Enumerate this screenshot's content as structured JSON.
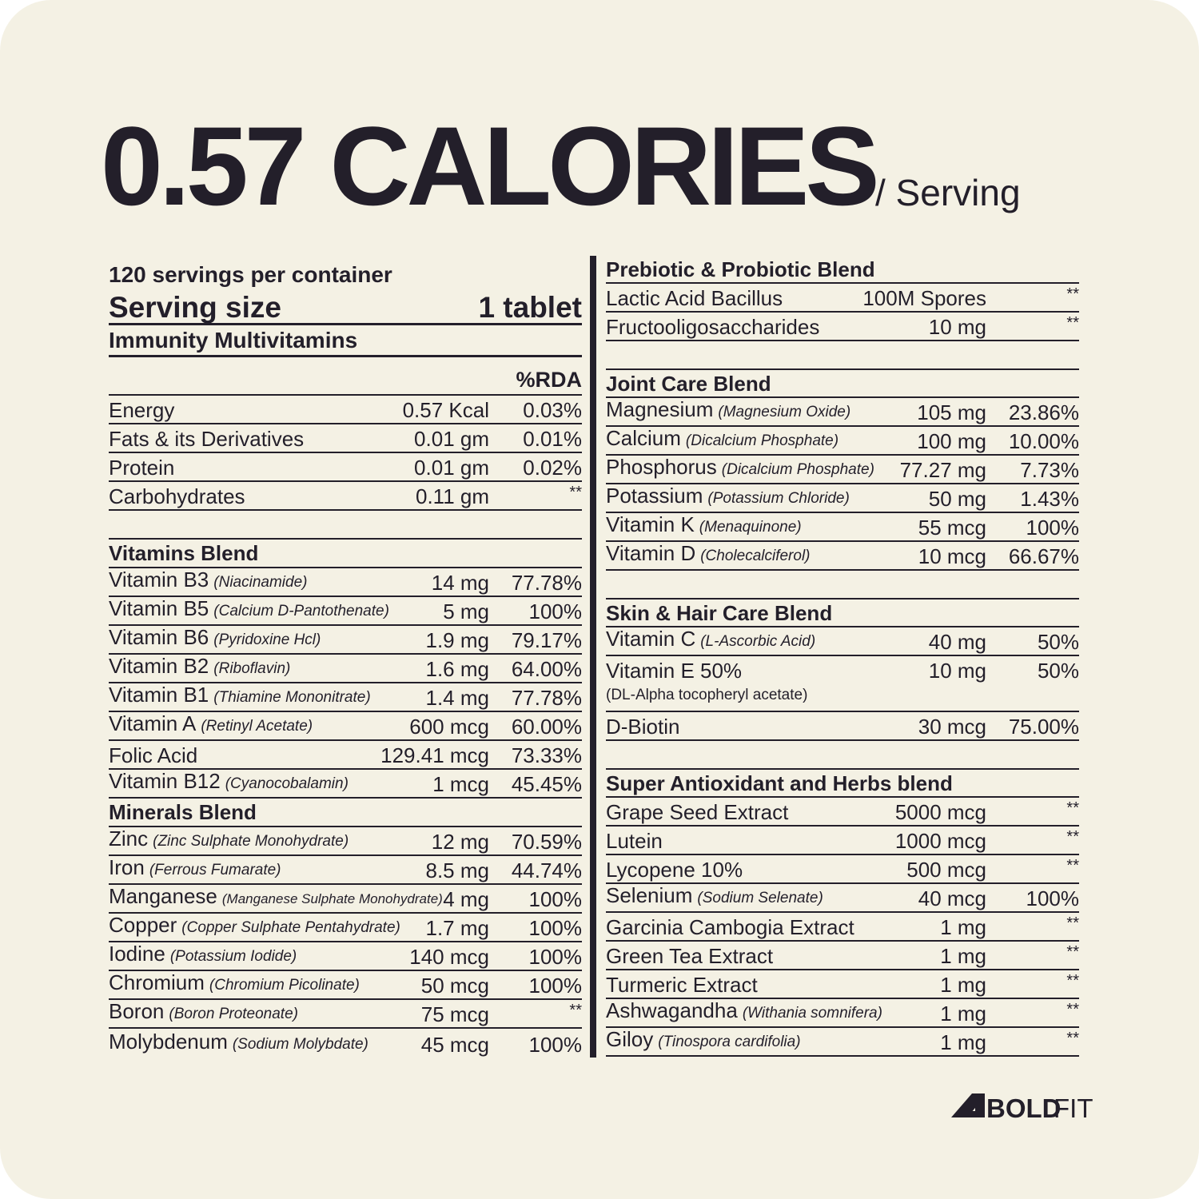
{
  "header": {
    "title": "0.57 CALORIES",
    "subtitle": "/ Serving"
  },
  "left": {
    "servings": "120 servings per container",
    "serving_size_label": "Serving size",
    "serving_size": "1 tablet",
    "product": "Immunity Multivitamins",
    "rda_header": "%RDA",
    "sections": [
      {
        "rows": [
          {
            "name": "Energy",
            "amount": "0.57 Kcal",
            "rda": "0.03%"
          },
          {
            "name": "Fats & its Derivatives",
            "amount": "0.01 gm",
            "rda": "0.01%"
          },
          {
            "name": "Protein",
            "amount": "0.01 gm",
            "rda": "0.02%"
          },
          {
            "name": "Carbohydrates",
            "amount": "0.11 gm",
            "rda": "**"
          }
        ]
      },
      {
        "title": "Vitamins Blend",
        "rows": [
          {
            "name": "Vitamin B3",
            "note": "(Niacinamide)",
            "amount": "14 mg",
            "rda": "77.78%"
          },
          {
            "name": "Vitamin B5",
            "note": "(Calcium D-Pantothenate)",
            "amount": "5 mg",
            "rda": "100%"
          },
          {
            "name": "Vitamin B6",
            "note": "(Pyridoxine Hcl)",
            "amount": "1.9 mg",
            "rda": "79.17%"
          },
          {
            "name": "Vitamin B2",
            "note": "(Riboflavin)",
            "amount": "1.6 mg",
            "rda": "64.00%"
          },
          {
            "name": "Vitamin B1",
            "note": "(Thiamine Mononitrate)",
            "amount": "1.4 mg",
            "rda": "77.78%"
          },
          {
            "name": "Vitamin A",
            "note": "(Retinyl Acetate)",
            "amount": "600 mcg",
            "rda": "60.00%"
          },
          {
            "name": "Folic Acid",
            "amount": "129.41 mcg",
            "rda": "73.33%"
          },
          {
            "name": "Vitamin B12",
            "note": "(Cyanocobalamin)",
            "amount": "1 mcg",
            "rda": "45.45%"
          }
        ]
      },
      {
        "title": "Minerals Blend",
        "rows": [
          {
            "name": "Zinc",
            "note": "(Zinc Sulphate Monohydrate)",
            "amount": "12 mg",
            "rda": "70.59%"
          },
          {
            "name": "Iron",
            "note": "(Ferrous Fumarate)",
            "amount": "8.5 mg",
            "rda": "44.74%"
          },
          {
            "name": "Manganese",
            "note": "(Manganese Sulphate Monohydrate)",
            "amount": "4 mg",
            "rda": "100%"
          },
          {
            "name": "Copper",
            "note": "(Copper Sulphate Pentahydrate)",
            "amount": "1.7 mg",
            "rda": "100%"
          },
          {
            "name": "Iodine",
            "note": "(Potassium Iodide)",
            "amount": "140 mcg",
            "rda": "100%"
          },
          {
            "name": "Chromium",
            "note": "(Chromium Picolinate)",
            "amount": "50 mcg",
            "rda": "100%"
          },
          {
            "name": "Boron",
            "note": "(Boron Proteonate)",
            "amount": "75 mcg",
            "rda": "**"
          },
          {
            "name": "Molybdenum",
            "note": "(Sodium Molybdate)",
            "amount": "45 mcg",
            "rda": "100%"
          }
        ]
      }
    ]
  },
  "right": {
    "sections": [
      {
        "title": "Prebiotic & Probiotic Blend",
        "rows": [
          {
            "name": "Lactic Acid Bacillus",
            "amount": "100M Spores",
            "rda": "**"
          },
          {
            "name": "Fructooligosaccharides",
            "amount": "10 mg",
            "rda": "**"
          }
        ]
      },
      {
        "title": "Joint Care Blend",
        "rows": [
          {
            "name": "Magnesium",
            "note": "(Magnesium Oxide)",
            "amount": "105 mg",
            "rda": "23.86%"
          },
          {
            "name": "Calcium",
            "note": "(Dicalcium Phosphate)",
            "amount": "100 mg",
            "rda": "10.00%"
          },
          {
            "name": "Phosphorus",
            "note": "(Dicalcium Phosphate)",
            "amount": "77.27 mg",
            "rda": "7.73%"
          },
          {
            "name": "Potassium",
            "note": "(Potassium Chloride)",
            "amount": "50 mg",
            "rda": "1.43%"
          },
          {
            "name": "Vitamin K",
            "note": "(Menaquinone)",
            "amount": "55 mcg",
            "rda": "100%"
          },
          {
            "name": "Vitamin D",
            "note": "(Cholecalciferol)",
            "amount": "10 mcg",
            "rda": "66.67%"
          }
        ]
      },
      {
        "title": "Skin & Hair Care Blend",
        "rows": [
          {
            "name": "Vitamin C",
            "note": "(L-Ascorbic Acid)",
            "amount": "40 mg",
            "rda": "50%"
          },
          {
            "name": "Vitamin E 50%",
            "detail": "(DL-Alpha tocopheryl acetate)",
            "amount": "10 mg",
            "rda": "50%"
          },
          {
            "name": "D-Biotin",
            "amount": "30 mcg",
            "rda": "75.00%"
          }
        ]
      },
      {
        "title": "Super Antioxidant and Herbs blend",
        "rows": [
          {
            "name": "Grape Seed Extract",
            "amount": "5000 mcg",
            "rda": "**"
          },
          {
            "name": "Lutein",
            "amount": "1000 mcg",
            "rda": "**"
          },
          {
            "name": "Lycopene 10%",
            "amount": "500 mcg",
            "rda": "**"
          },
          {
            "name": "Selenium",
            "note": "(Sodium Selenate)",
            "amount": "40 mcg",
            "rda": "100%"
          },
          {
            "name": "Garcinia Cambogia Extract",
            "amount": "1 mg",
            "rda": "**"
          },
          {
            "name": "Green Tea Extract",
            "amount": "1 mg",
            "rda": "**"
          },
          {
            "name": "Turmeric Extract",
            "amount": "1 mg",
            "rda": "**"
          },
          {
            "name": "Ashwagandha",
            "note": "(Withania somnifera)",
            "amount": "1 mg",
            "rda": "**"
          },
          {
            "name": "Giloy",
            "note": "(Tinospora cardifolia)",
            "amount": "1 mg",
            "rda": "**"
          }
        ]
      }
    ]
  },
  "brand": {
    "bold": "BOLD",
    "light": "FIT"
  }
}
